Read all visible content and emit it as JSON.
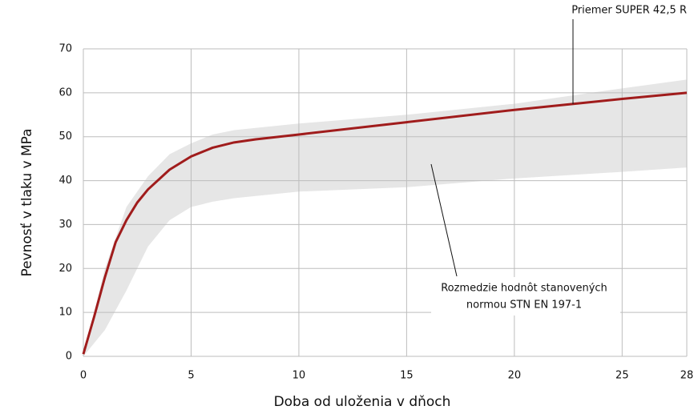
{
  "chart_data": {
    "type": "line",
    "x": [
      0,
      0.5,
      1,
      1.5,
      2,
      2.5,
      3,
      4,
      5,
      6,
      7,
      8,
      10,
      15,
      20,
      25,
      28
    ],
    "values": [
      0.5,
      9,
      18,
      26,
      31,
      35,
      38,
      42.5,
      45.5,
      47.5,
      48.7,
      49.4,
      50.5,
      53.3,
      56.1,
      58.6,
      60
    ],
    "color": "#a01c1c",
    "band": {
      "x": [
        0,
        1,
        2,
        3,
        4,
        5,
        6,
        7,
        10,
        15,
        20,
        25,
        28
      ],
      "upper": [
        0,
        20,
        34,
        41,
        46,
        48.5,
        50.5,
        51.5,
        53,
        55,
        57.5,
        61,
        63
      ],
      "lower": [
        0,
        6,
        15,
        25,
        31,
        34,
        35.2,
        36,
        37.5,
        38.5,
        40.5,
        42,
        43
      ],
      "color": "#e6e6e6"
    },
    "xlabel": "Doba od uloženia v dňoch",
    "ylabel": "Pevnosť v tlaku v MPa",
    "xlim": [
      0,
      28
    ],
    "xticks": [
      0,
      5,
      10,
      15,
      20,
      25,
      28
    ],
    "ylim": [
      0,
      70
    ],
    "yticks": [
      0,
      10,
      20,
      30,
      40,
      50,
      60,
      70
    ],
    "grid": true,
    "annotations": [
      "Priemer SUPER 42,5 R",
      "Rozmedzie hodnôt stanovených",
      "normou STN EN 197-1"
    ]
  }
}
